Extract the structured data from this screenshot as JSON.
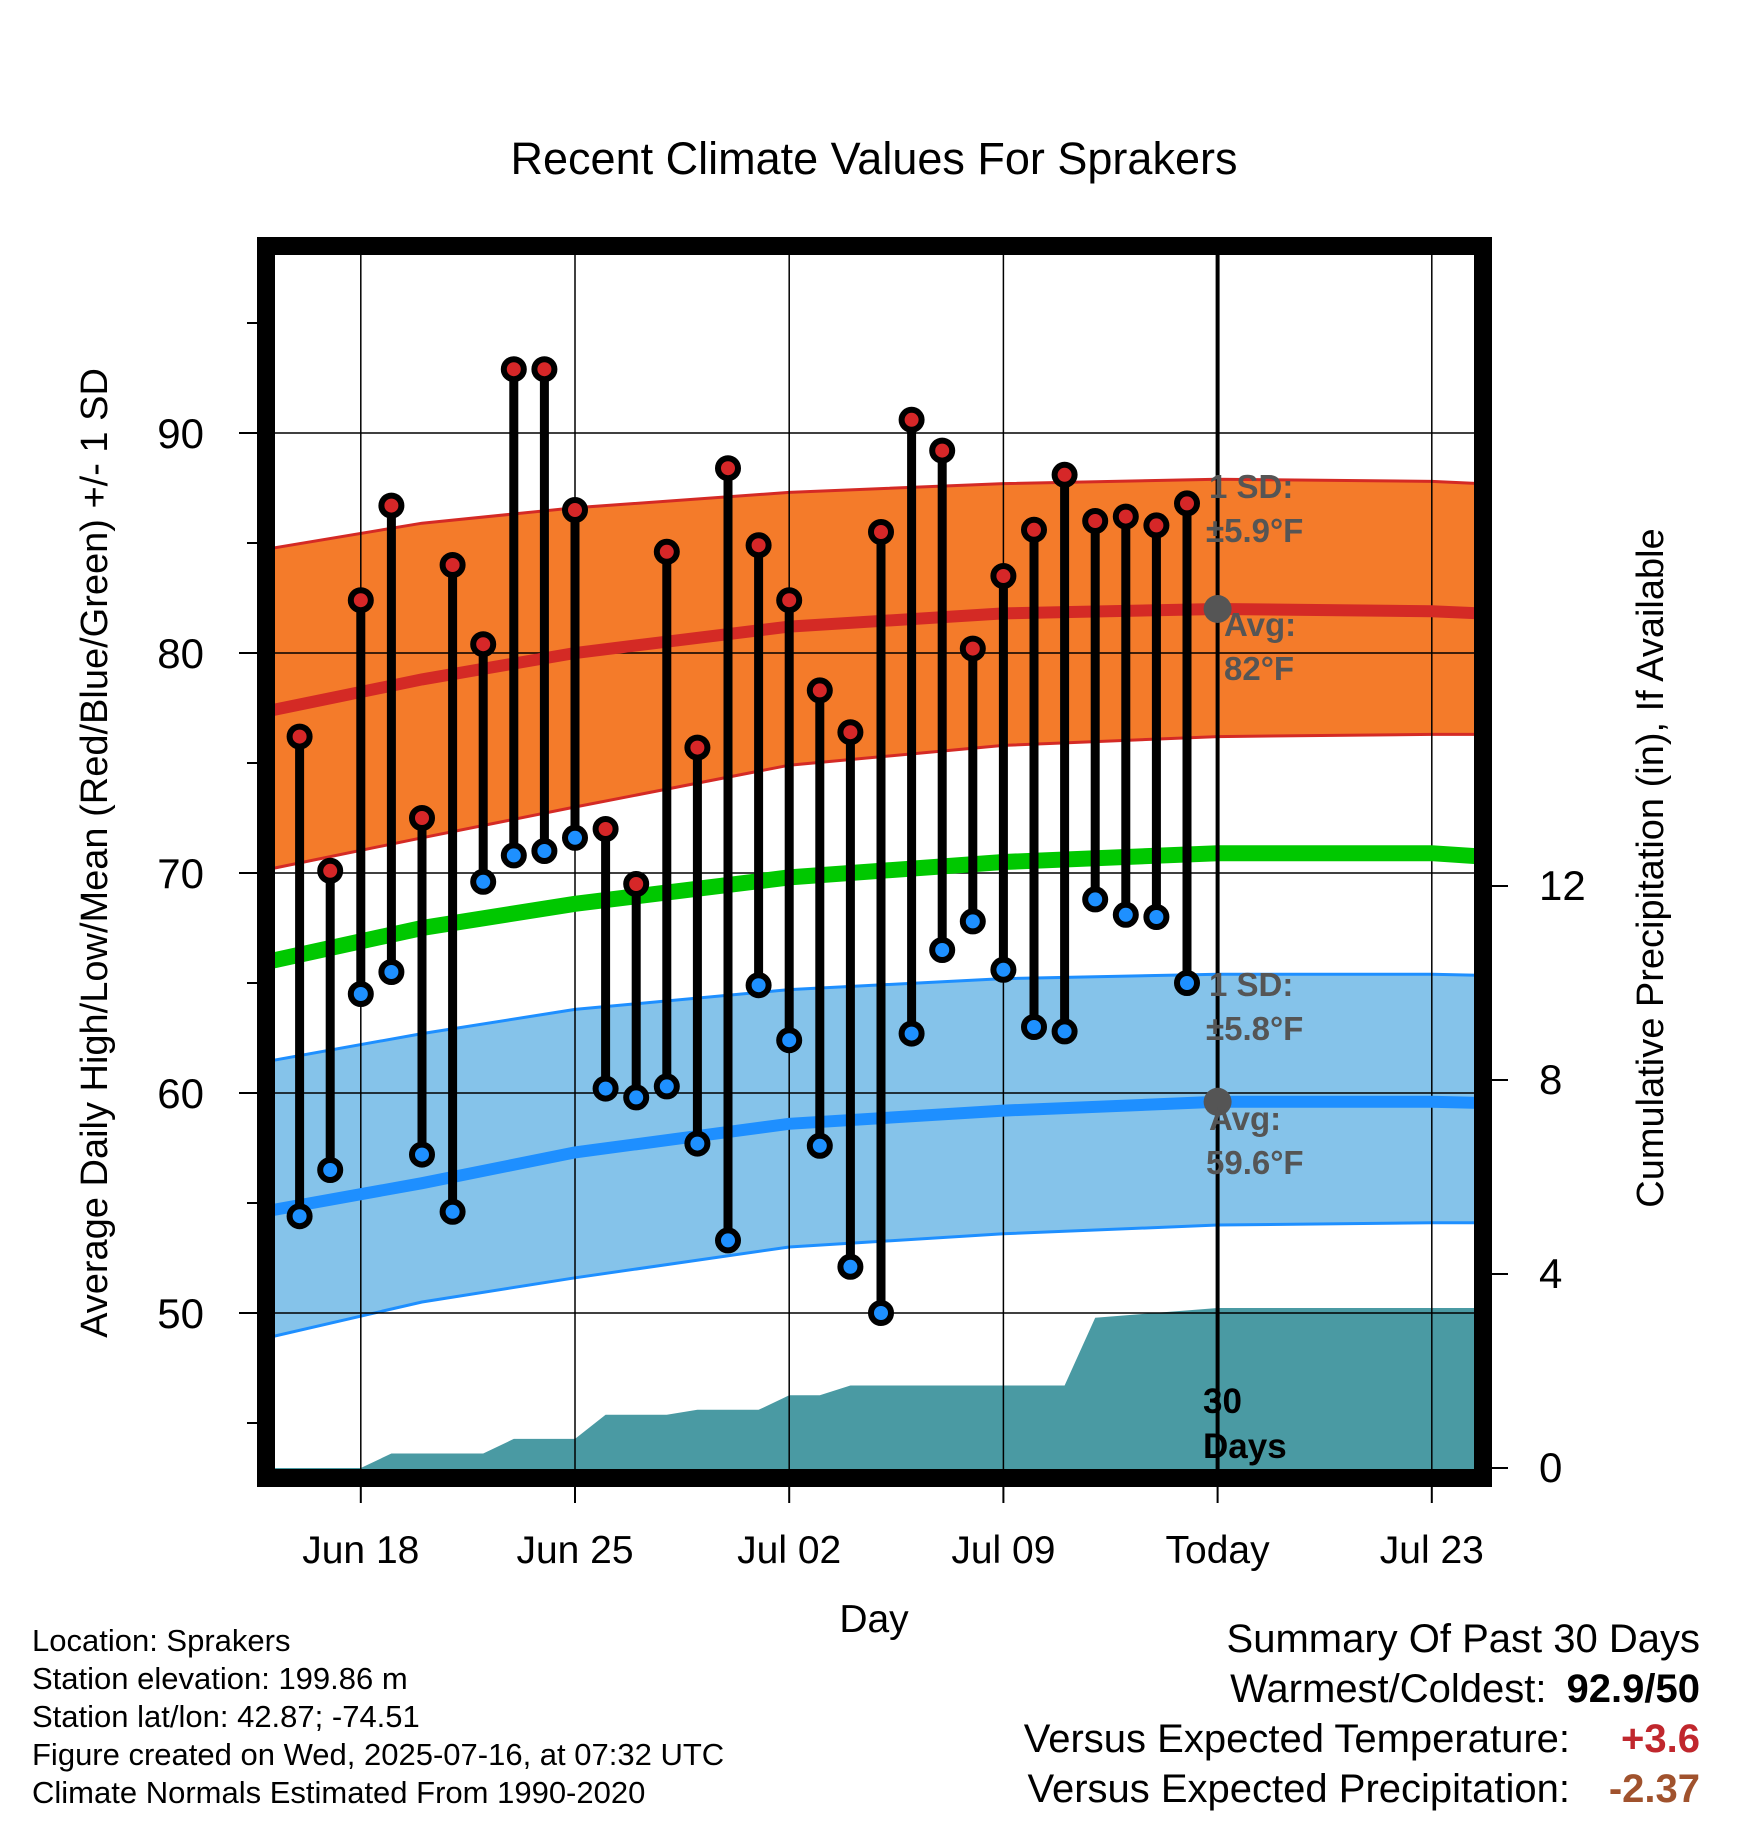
{
  "chart_data": {
    "type": "line",
    "title": "Recent Climate Values For Sprakers",
    "xlabel": "Day",
    "ylabel": "Average Daily High/Low/Mean (Red/Blue/Green) +/- 1 SD",
    "y2label": "Cumulative Precipitation (in), If Available",
    "ylim": [
      42.5,
      98
    ],
    "y2lim": [
      0,
      24
    ],
    "y_ticks": [
      "50",
      "60",
      "70",
      "80",
      "90"
    ],
    "y2_ticks": [
      "0",
      "4",
      "8",
      "12"
    ],
    "x_ticks": [
      "Jun 18",
      "Jun 25",
      "Jul 02",
      "Jul 09",
      "Today",
      "Jul 23"
    ],
    "x_tick_days": [
      3,
      10,
      17,
      24,
      31,
      38
    ],
    "xlim": [
      0,
      41.8
    ],
    "grid": true,
    "today_day": 31,
    "colors": {
      "high_band": "#f47b2a",
      "high_line": "#d42a25",
      "low_band": "#85c3ea",
      "low_line": "#1e8fff",
      "mean_line": "#00c800",
      "precip": "#4a9aa3",
      "marker_high": "#d62728",
      "marker_low": "#1e90ff",
      "annotation": "#555555"
    },
    "daily": {
      "days": [
        1,
        2,
        3,
        4,
        5,
        6,
        7,
        8,
        9,
        10,
        11,
        12,
        13,
        14,
        15,
        16,
        17,
        18,
        19,
        20,
        21,
        22,
        23,
        24,
        25,
        26,
        27,
        28,
        29,
        30
      ],
      "highs": [
        76.2,
        70.1,
        82.4,
        86.7,
        72.5,
        84.0,
        80.4,
        92.9,
        92.9,
        86.5,
        72.0,
        69.5,
        84.6,
        75.7,
        88.4,
        84.9,
        82.4,
        78.3,
        76.4,
        85.5,
        90.6,
        89.2,
        80.2,
        83.5,
        85.6,
        88.1,
        86.0,
        86.2,
        85.8,
        86.8
      ],
      "lows": [
        54.4,
        56.5,
        64.5,
        65.5,
        57.2,
        54.6,
        69.6,
        70.8,
        71.0,
        71.6,
        60.2,
        59.8,
        60.3,
        57.7,
        53.3,
        64.9,
        62.4,
        57.6,
        52.1,
        50.0,
        62.7,
        66.5,
        67.8,
        65.6,
        63.0,
        62.8,
        68.8,
        68.1,
        68.0,
        65.0
      ]
    },
    "normals": {
      "days": [
        -0.6,
        5,
        10,
        17,
        24,
        31,
        38,
        41.2
      ],
      "high_avg": [
        77.2,
        78.8,
        80.0,
        81.2,
        81.8,
        82.0,
        81.9,
        81.7
      ],
      "high_sd_upper": [
        84.6,
        85.9,
        86.6,
        87.3,
        87.7,
        87.9,
        87.8,
        87.6
      ],
      "high_sd_lower": [
        70.0,
        71.6,
        73.0,
        74.9,
        75.8,
        76.2,
        76.3,
        76.3
      ],
      "mean_avg": [
        65.8,
        67.5,
        68.6,
        69.8,
        70.5,
        70.9,
        70.9,
        70.6
      ],
      "low_avg": [
        54.5,
        55.9,
        57.3,
        58.6,
        59.2,
        59.6,
        59.6,
        59.5
      ],
      "low_sd_upper": [
        61.3,
        62.7,
        63.8,
        64.7,
        65.2,
        65.4,
        65.4,
        65.3
      ],
      "low_sd_lower": [
        48.7,
        50.5,
        51.6,
        53.0,
        53.6,
        54.0,
        54.1,
        54.1
      ]
    },
    "precip_cumulative": {
      "days": [
        0,
        3,
        4,
        7,
        8,
        10,
        11,
        13,
        14,
        16,
        17,
        18,
        19,
        20,
        21,
        22,
        23,
        24,
        25,
        26,
        27,
        31,
        41.2
      ],
      "values": [
        0,
        0,
        0.3,
        0.3,
        0.6,
        0.6,
        1.1,
        1.1,
        1.2,
        1.2,
        1.5,
        1.5,
        1.7,
        1.7,
        1.7,
        1.7,
        1.7,
        1.7,
        1.7,
        1.7,
        3.1,
        3.3,
        3.3
      ]
    },
    "annotations": {
      "high_sd_title": "1 SD:",
      "high_sd_value": "±5.9°F",
      "high_avg_title": "Avg:",
      "high_avg_value": "82°F",
      "low_sd_title": "1 SD:",
      "low_sd_value": "±5.8°F",
      "low_avg_title": "Avg:",
      "low_avg_value": "59.6°F",
      "period_line1": "30",
      "period_line2": "Days"
    }
  },
  "station_info": {
    "location": "Location: Sprakers",
    "elevation": "Station elevation: 199.86 m",
    "latlon": "Station lat/lon: 42.87; -74.51",
    "created": "Figure created on Wed, 2025-07-16, at 07:32 UTC",
    "normals": "Climate Normals Estimated From 1990-2020"
  },
  "summary": {
    "title": "Summary Of Past 30 Days",
    "warmest_label": "Warmest/Coldest:",
    "warmest_value": "92.9/50",
    "temp_label": "Versus Expected Temperature:",
    "temp_value": "+3.6",
    "temp_color": "#c0272d",
    "precip_label": "Versus Expected Precipitation:",
    "precip_value": "-2.37",
    "precip_color": "#a0522d"
  }
}
